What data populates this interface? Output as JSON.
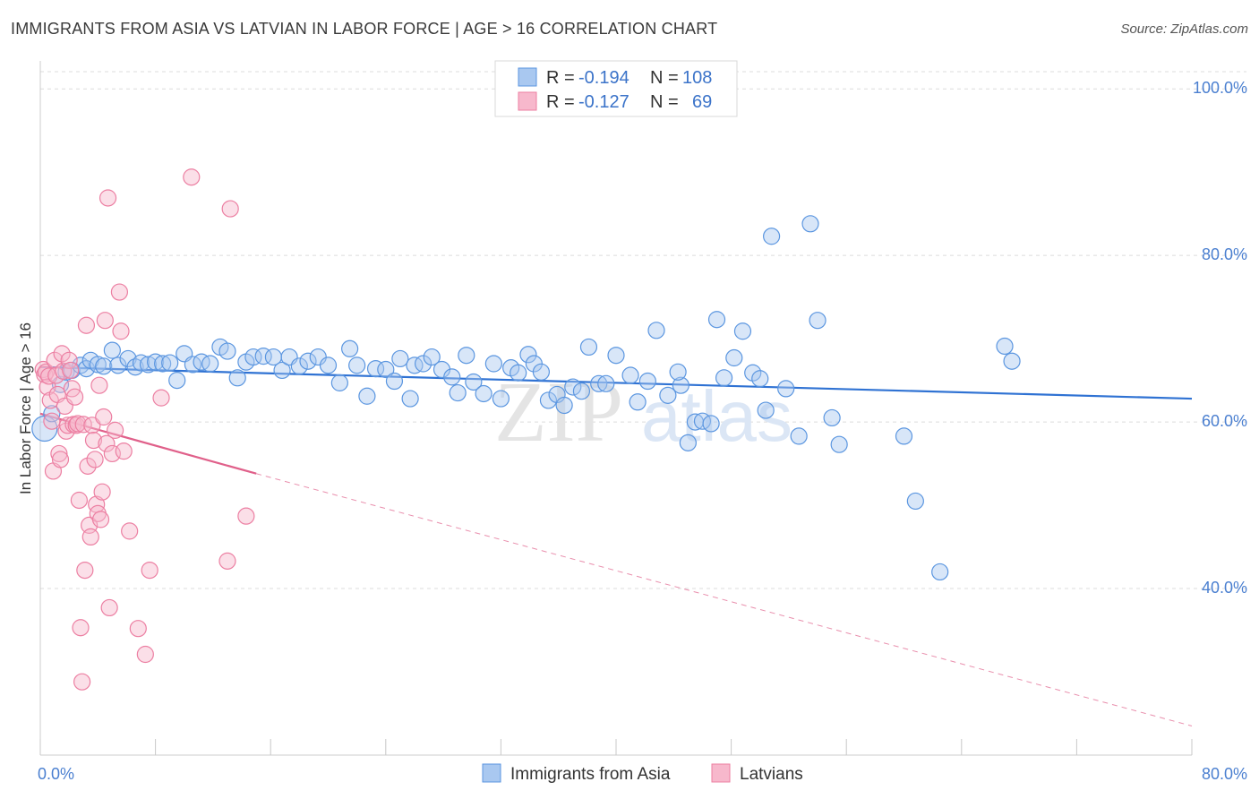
{
  "header": {
    "title": "IMMIGRANTS FROM ASIA VS LATVIAN IN LABOR FORCE | AGE > 16 CORRELATION CHART",
    "source": "Source: ZipAtlas.com"
  },
  "watermark": {
    "text_zip": "ZIP",
    "text_atlas": "atlas"
  },
  "legend": {
    "rows": [
      {
        "r_label": "R =",
        "r_value": "-0.194",
        "n_label": "N =",
        "n_value": "108",
        "color": "#a9c8f0"
      },
      {
        "r_label": "R =",
        "r_value": "-0.127",
        "n_label": "N =",
        "n_value": "69",
        "color": "#f7b8cc"
      }
    ]
  },
  "bottom_legend": {
    "items": [
      {
        "label": "Immigrants from Asia",
        "color": "#a9c8f0"
      },
      {
        "label": "Latvians",
        "color": "#f7b8cc"
      }
    ]
  },
  "chart_data": {
    "type": "scatter",
    "title": "IMMIGRANTS FROM ASIA VS LATVIAN IN LABOR FORCE | AGE > 16 CORRELATION CHART",
    "xlabel": "",
    "ylabel": "In Labor Force | Age > 16",
    "xlim": [
      0,
      80
    ],
    "ylim": [
      20,
      104
    ],
    "x_tick_labels": [
      {
        "value": 0,
        "label": "0.0%"
      },
      {
        "value": 80,
        "label": "80.0%"
      }
    ],
    "y_tick_labels": [
      {
        "value": 100,
        "label": "100.0%"
      },
      {
        "value": 80,
        "label": "80.0%"
      },
      {
        "value": 60,
        "label": "60.0%"
      },
      {
        "value": 40,
        "label": "40.0%"
      }
    ],
    "grid": true,
    "legend_position": "top-center",
    "series": [
      {
        "name": "Immigrants from Asia",
        "color": "#5b96e0",
        "fill": "#a9c8f0",
        "trend": {
          "x": [
            0,
            80
          ],
          "y": [
            66.6,
            62.8
          ],
          "style": "solid",
          "color": "#2f72d3"
        },
        "points": [
          [
            0.3,
            59.2
          ],
          [
            0.8,
            61.0
          ],
          [
            1.4,
            64.5
          ],
          [
            1.8,
            66.0
          ],
          [
            2.2,
            66.2
          ],
          [
            2.8,
            66.8
          ],
          [
            3.2,
            66.4
          ],
          [
            3.5,
            67.4
          ],
          [
            4.0,
            66.9
          ],
          [
            4.4,
            66.7
          ],
          [
            5.0,
            68.6
          ],
          [
            5.4,
            66.8
          ],
          [
            6.1,
            67.6
          ],
          [
            6.6,
            66.6
          ],
          [
            7.0,
            67.1
          ],
          [
            7.5,
            66.9
          ],
          [
            8.0,
            67.2
          ],
          [
            8.5,
            67.0
          ],
          [
            9.0,
            67.1
          ],
          [
            9.5,
            65.0
          ],
          [
            10.0,
            68.2
          ],
          [
            10.6,
            66.9
          ],
          [
            11.2,
            67.2
          ],
          [
            11.8,
            67.0
          ],
          [
            12.5,
            69.0
          ],
          [
            13.0,
            68.5
          ],
          [
            13.7,
            65.3
          ],
          [
            14.3,
            67.2
          ],
          [
            14.8,
            67.8
          ],
          [
            15.5,
            67.9
          ],
          [
            16.2,
            67.8
          ],
          [
            16.8,
            66.2
          ],
          [
            17.3,
            67.8
          ],
          [
            18.0,
            66.7
          ],
          [
            18.6,
            67.3
          ],
          [
            19.3,
            67.8
          ],
          [
            20.0,
            66.8
          ],
          [
            20.8,
            64.7
          ],
          [
            21.5,
            68.8
          ],
          [
            22.0,
            66.8
          ],
          [
            22.7,
            63.1
          ],
          [
            23.3,
            66.4
          ],
          [
            24.0,
            66.3
          ],
          [
            24.6,
            64.9
          ],
          [
            25.0,
            67.6
          ],
          [
            25.7,
            62.8
          ],
          [
            26.0,
            66.8
          ],
          [
            26.6,
            67.0
          ],
          [
            27.2,
            67.8
          ],
          [
            27.9,
            66.3
          ],
          [
            28.6,
            65.4
          ],
          [
            29.0,
            63.5
          ],
          [
            29.6,
            68.0
          ],
          [
            30.1,
            64.8
          ],
          [
            30.8,
            63.4
          ],
          [
            31.5,
            67.0
          ],
          [
            32.0,
            62.8
          ],
          [
            32.7,
            66.5
          ],
          [
            33.2,
            65.9
          ],
          [
            33.9,
            68.1
          ],
          [
            34.3,
            67.0
          ],
          [
            34.8,
            66.0
          ],
          [
            35.3,
            62.6
          ],
          [
            35.9,
            63.3
          ],
          [
            36.4,
            62.0
          ],
          [
            37.0,
            64.2
          ],
          [
            37.6,
            63.7
          ],
          [
            38.1,
            69.0
          ],
          [
            38.8,
            64.6
          ],
          [
            39.3,
            64.6
          ],
          [
            40.0,
            68.0
          ],
          [
            41.0,
            65.6
          ],
          [
            41.5,
            62.4
          ],
          [
            42.2,
            64.9
          ],
          [
            42.8,
            71.0
          ],
          [
            43.6,
            63.2
          ],
          [
            44.5,
            64.4
          ],
          [
            44.3,
            66.0
          ],
          [
            45.0,
            57.5
          ],
          [
            45.5,
            60.0
          ],
          [
            46.0,
            60.1
          ],
          [
            46.6,
            59.8
          ],
          [
            47.0,
            72.3
          ],
          [
            47.5,
            65.3
          ],
          [
            48.2,
            67.7
          ],
          [
            48.8,
            70.9
          ],
          [
            49.5,
            65.9
          ],
          [
            50.0,
            65.2
          ],
          [
            50.4,
            61.4
          ],
          [
            50.8,
            82.3
          ],
          [
            51.8,
            64.0
          ],
          [
            52.7,
            58.3
          ],
          [
            53.5,
            83.8
          ],
          [
            54.0,
            72.2
          ],
          [
            55.0,
            60.5
          ],
          [
            55.5,
            57.3
          ],
          [
            60.0,
            58.3
          ],
          [
            60.8,
            50.5
          ],
          [
            62.5,
            42.0
          ],
          [
            67.0,
            69.1
          ],
          [
            67.5,
            67.3
          ]
        ]
      },
      {
        "name": "Latvians",
        "color": "#ec7fa2",
        "fill": "#f7b8cc",
        "trend": {
          "x": [
            0,
            15
          ],
          "y": [
            61.0,
            53.8
          ],
          "style": "solid",
          "dash_extension": {
            "x": [
              15,
              80
            ],
            "y": [
              53.8,
              23.5
            ]
          },
          "color": "#e0608a"
        },
        "points": [
          [
            0.2,
            66.3
          ],
          [
            0.3,
            65.7
          ],
          [
            0.4,
            66.0
          ],
          [
            0.5,
            64.2
          ],
          [
            0.6,
            65.5
          ],
          [
            0.7,
            62.6
          ],
          [
            0.8,
            60.1
          ],
          [
            0.9,
            54.1
          ],
          [
            1.0,
            67.4
          ],
          [
            1.1,
            65.6
          ],
          [
            1.2,
            63.3
          ],
          [
            1.3,
            56.2
          ],
          [
            1.4,
            55.5
          ],
          [
            1.5,
            68.2
          ],
          [
            1.6,
            66.1
          ],
          [
            1.7,
            61.9
          ],
          [
            1.8,
            58.9
          ],
          [
            1.9,
            59.6
          ],
          [
            2.0,
            67.4
          ],
          [
            2.1,
            66.2
          ],
          [
            2.2,
            64.0
          ],
          [
            2.3,
            59.7
          ],
          [
            2.4,
            63.0
          ],
          [
            2.5,
            59.6
          ],
          [
            2.6,
            59.8
          ],
          [
            2.7,
            50.6
          ],
          [
            2.8,
            35.3
          ],
          [
            2.9,
            28.8
          ],
          [
            3.0,
            59.7
          ],
          [
            3.1,
            42.2
          ],
          [
            3.2,
            71.6
          ],
          [
            3.3,
            54.7
          ],
          [
            3.4,
            47.6
          ],
          [
            3.5,
            46.2
          ],
          [
            3.6,
            59.6
          ],
          [
            3.7,
            57.8
          ],
          [
            3.8,
            55.5
          ],
          [
            3.9,
            50.1
          ],
          [
            4.0,
            49.0
          ],
          [
            4.1,
            64.4
          ],
          [
            4.2,
            48.3
          ],
          [
            4.3,
            51.6
          ],
          [
            4.4,
            60.6
          ],
          [
            4.5,
            72.2
          ],
          [
            4.6,
            57.4
          ],
          [
            4.7,
            86.9
          ],
          [
            4.8,
            37.7
          ],
          [
            5.0,
            56.2
          ],
          [
            5.2,
            59.0
          ],
          [
            5.5,
            75.6
          ],
          [
            5.6,
            70.9
          ],
          [
            5.8,
            56.5
          ],
          [
            6.2,
            46.9
          ],
          [
            6.8,
            35.2
          ],
          [
            7.3,
            32.1
          ],
          [
            7.6,
            42.2
          ],
          [
            8.4,
            62.9
          ],
          [
            10.5,
            89.4
          ],
          [
            13.2,
            85.6
          ],
          [
            13.0,
            43.3
          ],
          [
            14.3,
            48.7
          ]
        ]
      }
    ]
  }
}
